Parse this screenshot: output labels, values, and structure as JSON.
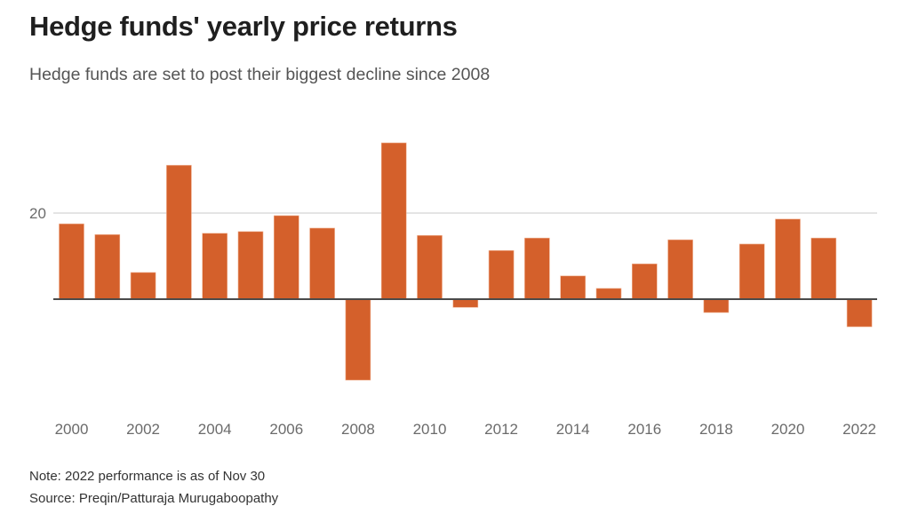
{
  "header": {
    "title": "Hedge funds' yearly price returns",
    "subtitle": "Hedge funds are set to post their biggest decline since 2008"
  },
  "footer": {
    "note": "Note: 2022 performance is as of Nov 30",
    "source": "Source: Preqin/Patturaja Murugaboopathy"
  },
  "colors": {
    "bar": "#D4602B",
    "axis": "#4a4a4a",
    "grid": "#d3d3d3"
  },
  "chart_data": {
    "type": "bar",
    "title": "Hedge funds' yearly price returns",
    "subtitle": "Hedge funds are set to post their biggest decline since 2008",
    "xlabel": "",
    "ylabel": "",
    "categories": [
      "2000",
      "2001",
      "2002",
      "2003",
      "2004",
      "2005",
      "2006",
      "2007",
      "2008",
      "2009",
      "2010",
      "2011",
      "2012",
      "2013",
      "2014",
      "2015",
      "2016",
      "2017",
      "2018",
      "2019",
      "2020",
      "2021",
      "2022"
    ],
    "values": [
      17.5,
      15.0,
      6.2,
      31.1,
      15.3,
      15.7,
      19.4,
      16.5,
      -18.8,
      36.3,
      14.8,
      -1.9,
      11.3,
      14.2,
      5.4,
      2.5,
      8.2,
      13.8,
      -3.1,
      12.8,
      18.6,
      14.2,
      -6.4
    ],
    "ylim": [
      -25,
      40
    ],
    "y_ticks": [
      20
    ],
    "y_tick_labels": [
      "20"
    ],
    "x_tick_labels": [
      "2000",
      "2002",
      "2004",
      "2006",
      "2008",
      "2010",
      "2012",
      "2014",
      "2016",
      "2018",
      "2020",
      "2022"
    ],
    "grid": true,
    "legend": "none"
  }
}
